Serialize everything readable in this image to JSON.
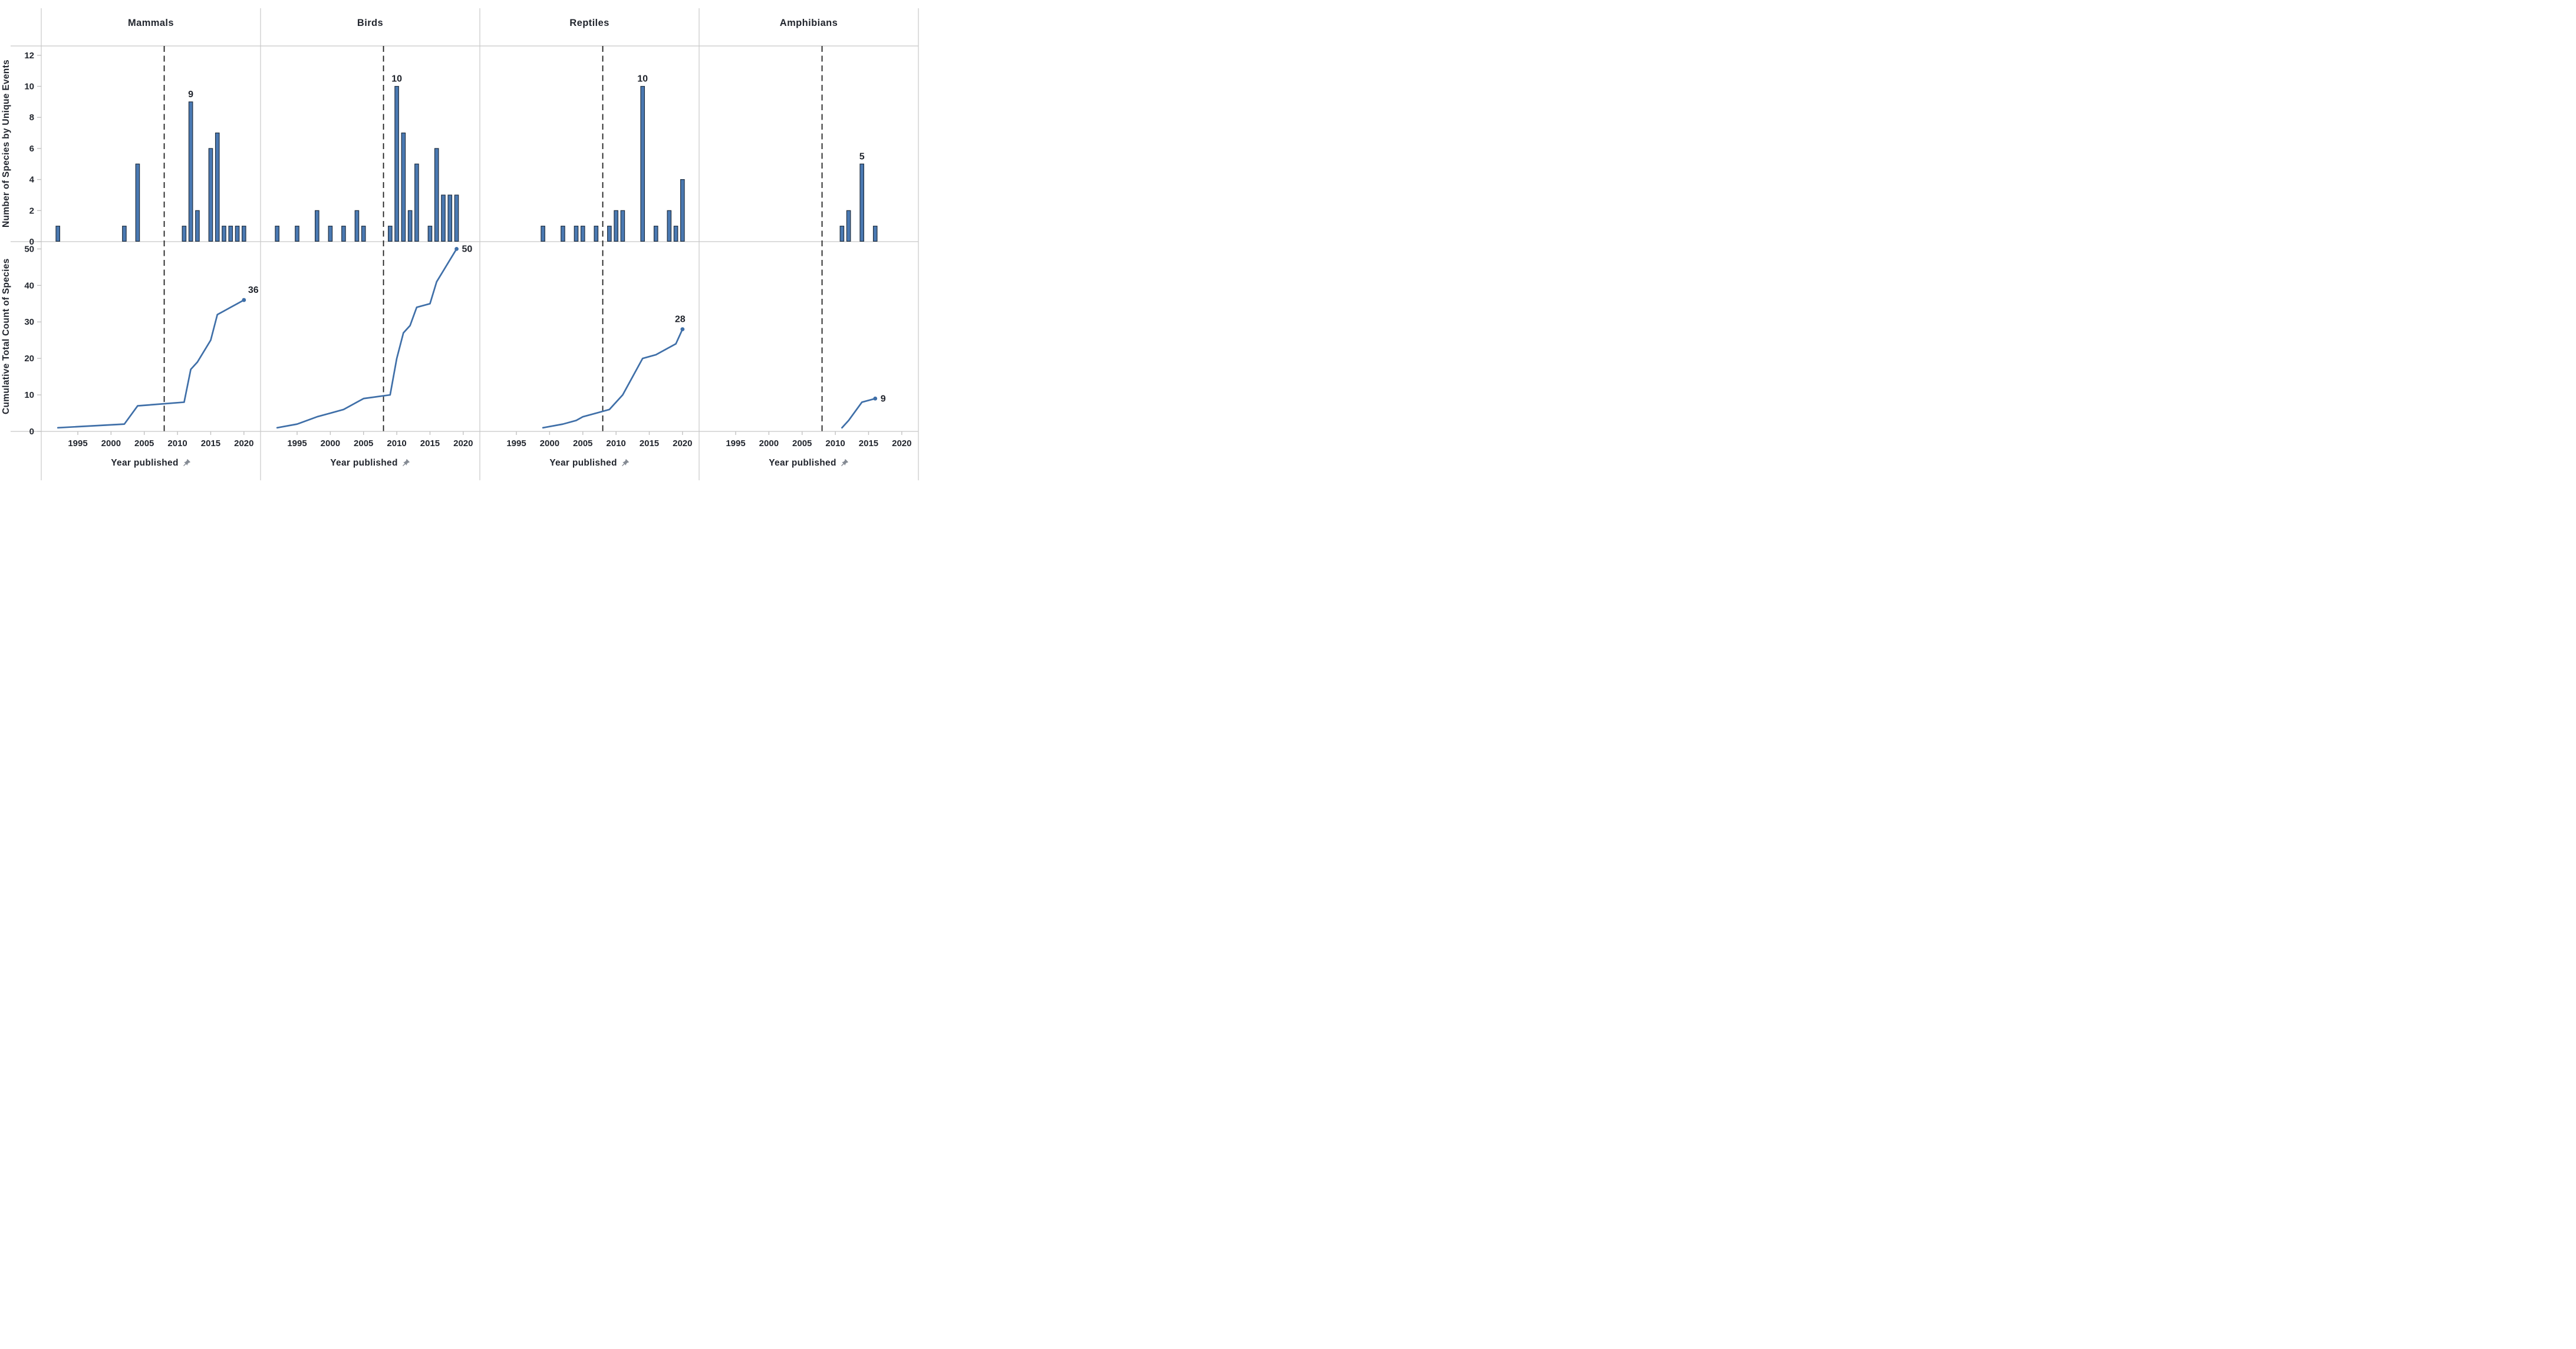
{
  "colors": {
    "bar_fill": "#4a79b2",
    "bar_stroke": "#1f2e40",
    "line": "#3f6fa8",
    "reference_dash": "#1c1c1c",
    "frame": "#c7c7c7",
    "tick_mark": "#c2c2c2",
    "text_dark": "#22262e",
    "annotation_text": "#1e222a",
    "pin_icon": "#858b94"
  },
  "axes": {
    "x": {
      "title": "Year published",
      "icon": "pin-icon",
      "ticks": [
        1995,
        2000,
        2005,
        2010,
        2015,
        2020
      ],
      "range": [
        1989.5,
        2022.5
      ]
    },
    "y_top": {
      "title": "Number of Species by Unique Events",
      "ticks": [
        0,
        2,
        4,
        6,
        8,
        10,
        12
      ],
      "range": [
        0,
        12.6
      ]
    },
    "y_bottom": {
      "title": "Cumulative Total Count of Species",
      "ticks": [
        0,
        10,
        20,
        30,
        40,
        50
      ],
      "range": [
        0,
        52
      ]
    }
  },
  "reference_line_year": 2008,
  "chart_data": {
    "type": "small-multiples: bar (top row) + cumulative line (bottom row)",
    "grid": "4 columns x 2 rows, shared axes, no gridlines, dashed vertical reference at 2008",
    "panels": [
      {
        "title": "Mammals",
        "bars": {
          "type": "bar",
          "years": [
            1992,
            2002,
            2004,
            2011,
            2012,
            2013,
            2015,
            2016,
            2017,
            2018,
            2019,
            2020
          ],
          "counts": [
            1,
            1,
            5,
            1,
            9,
            2,
            6,
            7,
            1,
            1,
            1,
            1
          ]
        },
        "bar_peak_label": {
          "year": 2012,
          "value": "9"
        },
        "line": {
          "type": "line",
          "years": [
            1992,
            2002,
            2004,
            2011,
            2012,
            2013,
            2015,
            2016,
            2017,
            2018,
            2019,
            2020
          ],
          "cumulative": [
            1,
            2,
            7,
            8,
            17,
            19,
            25,
            32,
            33,
            34,
            35,
            36
          ]
        },
        "end_label": {
          "year": 2020,
          "value": "36",
          "placement": "above-right"
        }
      },
      {
        "title": "Birds",
        "bars": {
          "type": "bar",
          "years": [
            1992,
            1995,
            1998,
            2000,
            2002,
            2004,
            2005,
            2009,
            2010,
            2011,
            2012,
            2013,
            2015,
            2016,
            2017,
            2018,
            2019
          ],
          "counts": [
            1,
            1,
            2,
            1,
            1,
            2,
            1,
            1,
            10,
            7,
            2,
            5,
            1,
            6,
            3,
            3,
            3
          ]
        },
        "bar_peak_label": {
          "year": 2010,
          "value": "10"
        },
        "line": {
          "type": "line",
          "years": [
            1992,
            1995,
            1998,
            2000,
            2002,
            2004,
            2005,
            2009,
            2010,
            2011,
            2012,
            2013,
            2015,
            2016,
            2017,
            2018,
            2019
          ],
          "cumulative": [
            1,
            2,
            4,
            5,
            6,
            8,
            9,
            10,
            20,
            27,
            29,
            34,
            35,
            41,
            44,
            47,
            50
          ]
        },
        "end_label": {
          "year": 2019,
          "value": "50",
          "placement": "right"
        }
      },
      {
        "title": "Reptiles",
        "bars": {
          "type": "bar",
          "years": [
            1999,
            2002,
            2004,
            2005,
            2007,
            2009,
            2010,
            2011,
            2014,
            2016,
            2018,
            2019,
            2020
          ],
          "counts": [
            1,
            1,
            1,
            1,
            1,
            1,
            2,
            2,
            10,
            1,
            2,
            1,
            4
          ]
        },
        "bar_peak_label": {
          "year": 2014,
          "value": "10"
        },
        "line": {
          "type": "line",
          "years": [
            1999,
            2002,
            2004,
            2005,
            2007,
            2009,
            2010,
            2011,
            2014,
            2016,
            2018,
            2019,
            2020
          ],
          "cumulative": [
            1,
            2,
            3,
            4,
            5,
            6,
            8,
            10,
            20,
            21,
            23,
            24,
            28
          ]
        },
        "end_label": {
          "year": 2020,
          "value": "28",
          "placement": "above"
        }
      },
      {
        "title": "Amphibians",
        "bars": {
          "type": "bar",
          "years": [
            2011,
            2012,
            2014,
            2016
          ],
          "counts": [
            1,
            2,
            5,
            1
          ]
        },
        "bar_peak_label": {
          "year": 2014,
          "value": "5"
        },
        "line": {
          "type": "line",
          "years": [
            2011,
            2012,
            2014,
            2016
          ],
          "cumulative": [
            1,
            3,
            8,
            9
          ]
        },
        "end_label": {
          "year": 2016,
          "value": "9",
          "placement": "right"
        }
      }
    ]
  }
}
